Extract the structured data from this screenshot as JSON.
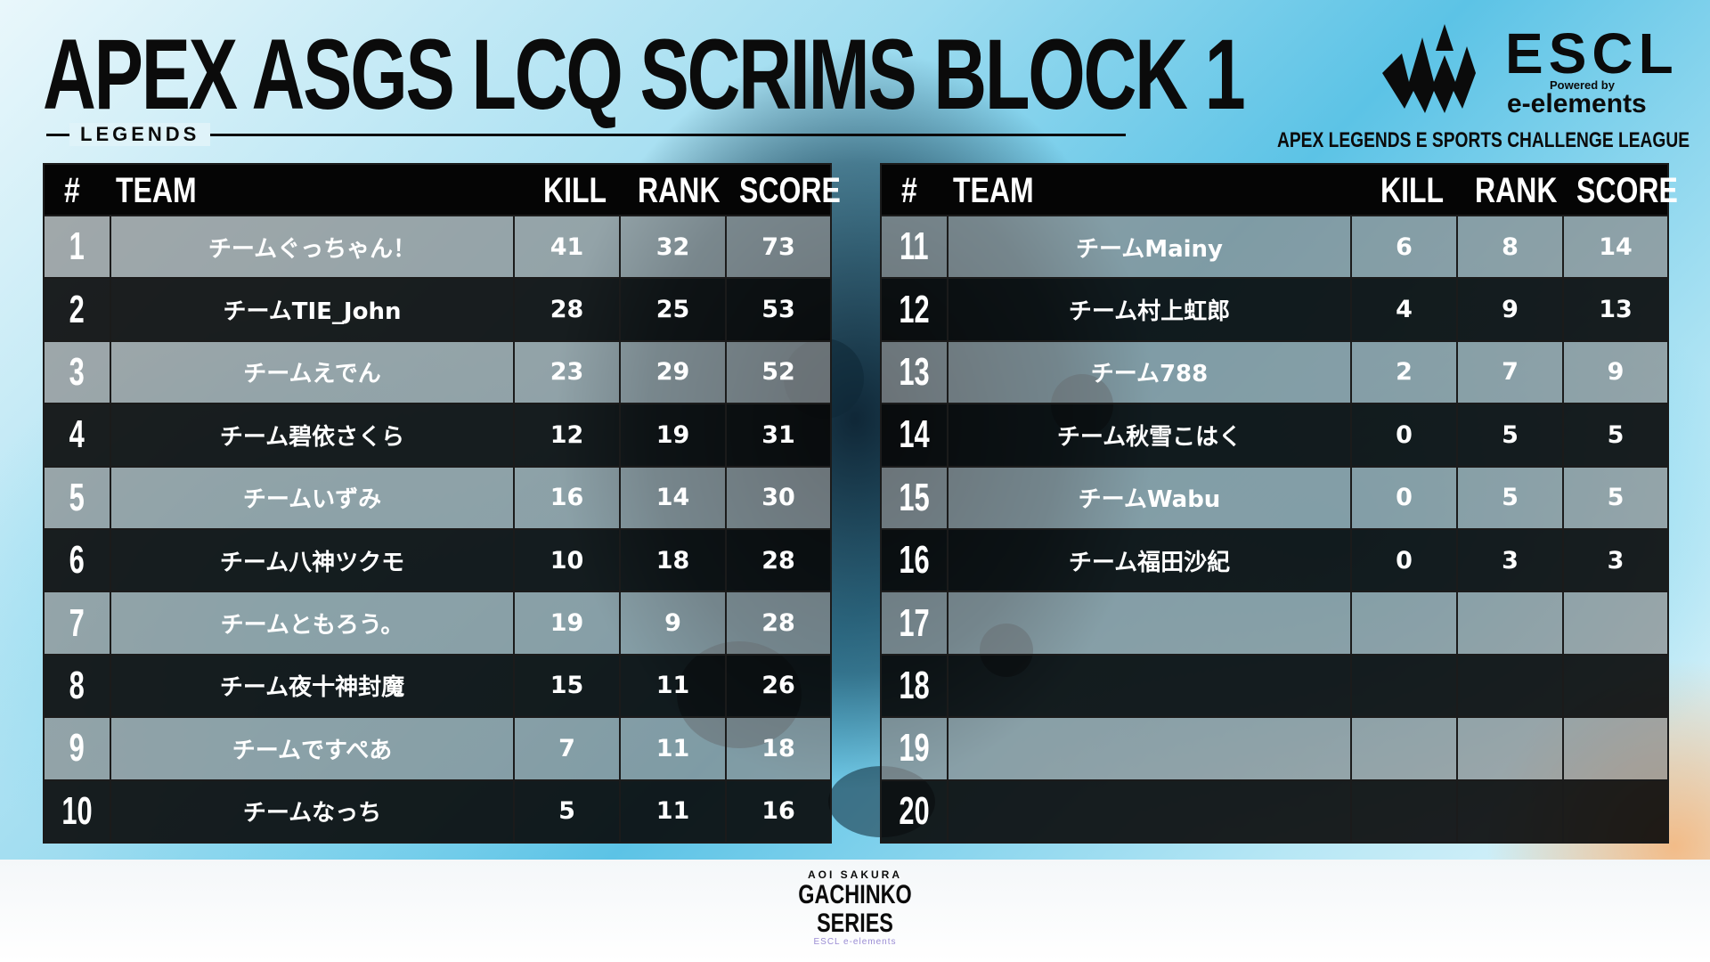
{
  "title": "APEX ASGS LCQ SCRIMS BLOCK 1",
  "subtitle": "LEGENDS",
  "logo": {
    "name": "ESCL",
    "powered_by": "Powered by",
    "sponsor": "e-elements",
    "league": "APEX LEGENDS  E SPORTS CHALLENGE LEAGUE"
  },
  "table": {
    "headers": {
      "num": "#",
      "team": "TEAM",
      "kill": "KILL",
      "rank": "RANK",
      "score": "SCORE"
    },
    "rows": [
      {
        "num": "1",
        "team": "チームぐっちゃん！",
        "kill": "41",
        "rank": "32",
        "score": "73"
      },
      {
        "num": "2",
        "team": "チームTIE_John",
        "kill": "28",
        "rank": "25",
        "score": "53"
      },
      {
        "num": "3",
        "team": "チームえでん",
        "kill": "23",
        "rank": "29",
        "score": "52"
      },
      {
        "num": "4",
        "team": "チーム碧依さくら",
        "kill": "12",
        "rank": "19",
        "score": "31"
      },
      {
        "num": "5",
        "team": "チームいずみ",
        "kill": "16",
        "rank": "14",
        "score": "30"
      },
      {
        "num": "6",
        "team": "チーム八神ツクモ",
        "kill": "10",
        "rank": "18",
        "score": "28"
      },
      {
        "num": "7",
        "team": "チームともろう。",
        "kill": "19",
        "rank": "9",
        "score": "28"
      },
      {
        "num": "8",
        "team": "チーム夜十神封魔",
        "kill": "15",
        "rank": "11",
        "score": "26"
      },
      {
        "num": "9",
        "team": "チームですぺあ",
        "kill": "7",
        "rank": "11",
        "score": "18"
      },
      {
        "num": "10",
        "team": "チームなっち",
        "kill": "5",
        "rank": "11",
        "score": "16"
      },
      {
        "num": "11",
        "team": "チームMainy",
        "kill": "6",
        "rank": "8",
        "score": "14"
      },
      {
        "num": "12",
        "team": "チーム村上虹郎",
        "kill": "4",
        "rank": "9",
        "score": "13"
      },
      {
        "num": "13",
        "team": "チーム788",
        "kill": "2",
        "rank": "7",
        "score": "9"
      },
      {
        "num": "14",
        "team": "チーム秋雪こはく",
        "kill": "0",
        "rank": "5",
        "score": "5"
      },
      {
        "num": "15",
        "team": "チームWabu",
        "kill": "0",
        "rank": "5",
        "score": "5"
      },
      {
        "num": "16",
        "team": "チーム福田沙紀",
        "kill": "0",
        "rank": "3",
        "score": "3"
      },
      {
        "num": "17",
        "team": "",
        "kill": "",
        "rank": "",
        "score": ""
      },
      {
        "num": "18",
        "team": "",
        "kill": "",
        "rank": "",
        "score": ""
      },
      {
        "num": "19",
        "team": "",
        "kill": "",
        "rank": "",
        "score": ""
      },
      {
        "num": "20",
        "team": "",
        "kill": "",
        "rank": "",
        "score": ""
      }
    ]
  },
  "bottom_logo": {
    "top": "AOI SAKURA",
    "main": "GACHINKO SERIES",
    "sub": "ESCL e-elements"
  },
  "colors": {
    "header_bg": "#050505",
    "row_light": "#8c8c8c",
    "row_dark": "#080808",
    "text": "#ffffff",
    "accent_bg": "#5cc3e6"
  }
}
